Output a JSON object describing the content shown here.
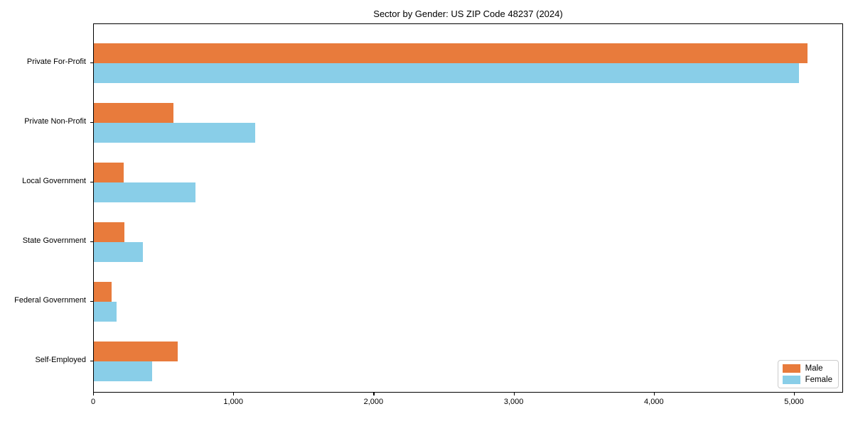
{
  "chart_data": {
    "type": "bar",
    "orientation": "horizontal",
    "title": "Sector by Gender: US ZIP Code 48237 (2024)",
    "categories": [
      "Private For-Profit",
      "Private Non-Profit",
      "Local Government",
      "State Government",
      "Federal Government",
      "Self-Employed"
    ],
    "series": [
      {
        "name": "Male",
        "color": "#e87b3c",
        "values": [
          5090,
          570,
          215,
          220,
          125,
          600
        ]
      },
      {
        "name": "Female",
        "color": "#89cee8",
        "values": [
          5030,
          1150,
          725,
          350,
          160,
          415
        ]
      }
    ],
    "xlabel": "",
    "ylabel": "",
    "xlim": [
      0,
      5350
    ],
    "x_ticks": [
      0,
      1000,
      2000,
      3000,
      4000,
      5000
    ],
    "x_tick_labels": [
      "0",
      "1,000",
      "2,000",
      "3,000",
      "4,000",
      "5,000"
    ],
    "grid": false,
    "legend": {
      "position": "lower right"
    }
  }
}
